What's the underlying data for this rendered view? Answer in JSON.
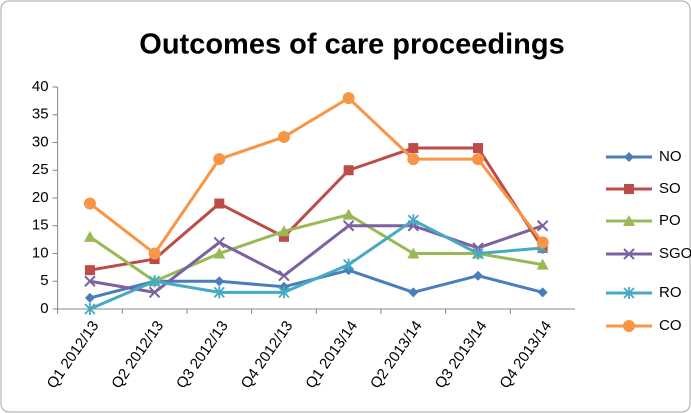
{
  "chart_data": {
    "type": "line",
    "title": "Outcomes of care proceedings",
    "categories": [
      "Q1 2012/13",
      "Q2 2012/13",
      "Q3 2012/13",
      "Q4 2012/13",
      "Q1 2013/14",
      "Q2 2013/14",
      "Q3 2013/14",
      "Q4 2013/14"
    ],
    "series": [
      {
        "name": "NO",
        "color": "#4a7ebb",
        "marker": "diamond",
        "values": [
          2,
          5,
          5,
          4,
          7,
          3,
          6,
          3
        ]
      },
      {
        "name": "SO",
        "color": "#be4b48",
        "marker": "square",
        "values": [
          7,
          9,
          19,
          13,
          25,
          29,
          29,
          11
        ]
      },
      {
        "name": "PO",
        "color": "#98b954",
        "marker": "triangle",
        "values": [
          13,
          5,
          10,
          14,
          17,
          10,
          10,
          8
        ]
      },
      {
        "name": "SGO",
        "color": "#7d60a0",
        "marker": "x",
        "values": [
          5,
          3,
          12,
          6,
          15,
          15,
          11,
          15
        ]
      },
      {
        "name": "RO",
        "color": "#46aac5",
        "marker": "star",
        "values": [
          0,
          5,
          3,
          3,
          8,
          16,
          10,
          11
        ]
      },
      {
        "name": "CO",
        "color": "#f79646",
        "marker": "circle",
        "values": [
          19,
          10,
          27,
          31,
          38,
          27,
          27,
          12
        ]
      }
    ],
    "ylim": [
      0,
      40
    ],
    "yticks": [
      0,
      5,
      10,
      15,
      20,
      25,
      30,
      35,
      40
    ],
    "grid": false,
    "legend": "right"
  }
}
